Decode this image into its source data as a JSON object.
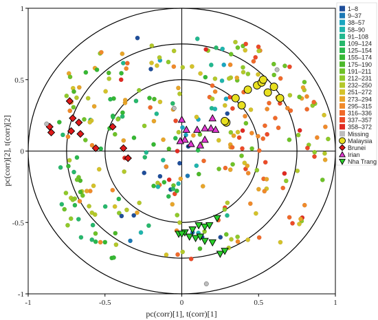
{
  "chart_data": {
    "type": "scatter",
    "title": "",
    "xlabel": "pc(corr)[1], t(corr)[1]",
    "ylabel": "pc(corr)[2], t(corr)[2]",
    "xlim": [
      -1,
      1
    ],
    "ylim": [
      -1,
      1
    ],
    "x_ticks": [
      -1,
      -0.5,
      0,
      0.5,
      1
    ],
    "y_ticks": [
      1,
      0.5,
      0,
      -0.5,
      -1
    ],
    "x_tick_labels": [
      "-1",
      "-0.5",
      "0",
      "0.5",
      "1"
    ],
    "y_tick_labels": [
      "1",
      "0.5",
      "0",
      "-0.5",
      "-1"
    ],
    "circles_radius": [
      0.5,
      0.75,
      1.0
    ],
    "legend_position": "right",
    "legend": [
      {
        "label": "1–8",
        "color": "#1f4e9a",
        "shape": "square"
      },
      {
        "label": "9–37",
        "color": "#1a78b5",
        "shape": "square"
      },
      {
        "label": "38–57",
        "color": "#1aa6c0",
        "shape": "square"
      },
      {
        "label": "58–90",
        "color": "#1fb5ad",
        "shape": "square"
      },
      {
        "label": "91–108",
        "color": "#22b88f",
        "shape": "square"
      },
      {
        "label": "109–124",
        "color": "#27b86c",
        "shape": "square"
      },
      {
        "label": "125–154",
        "color": "#2ab84e",
        "shape": "square"
      },
      {
        "label": "155–174",
        "color": "#36b833",
        "shape": "square"
      },
      {
        "label": "175–190",
        "color": "#4cb82a",
        "shape": "square"
      },
      {
        "label": "191–211",
        "color": "#6ec228",
        "shape": "square"
      },
      {
        "label": "212–231",
        "color": "#8fc92a",
        "shape": "square"
      },
      {
        "label": "232–250",
        "color": "#b3c82a",
        "shape": "square"
      },
      {
        "label": "251–272",
        "color": "#d4c22a",
        "shape": "square"
      },
      {
        "label": "273–294",
        "color": "#e8a52a",
        "shape": "square"
      },
      {
        "label": "295–315",
        "color": "#f08a2a",
        "shape": "square"
      },
      {
        "label": "316–336",
        "color": "#f06a2a",
        "shape": "square"
      },
      {
        "label": "337–357",
        "color": "#ec4a28",
        "shape": "square"
      },
      {
        "label": "358–372",
        "color": "#e02a22",
        "shape": "square"
      },
      {
        "label": "Missing",
        "color": "#bdbdbd",
        "shape": "square"
      },
      {
        "label": "Malaysia",
        "color": "#e8e020",
        "shape": "circle"
      },
      {
        "label": "Brunei",
        "color": "#e01a1a",
        "shape": "diamond"
      },
      {
        "label": "Irian",
        "color": "#e03ad0",
        "shape": "triangle-up"
      },
      {
        "label": "Nha Trang",
        "color": "#2ad02a",
        "shape": "triangle-down"
      }
    ],
    "series": [
      {
        "name": "Malaysia",
        "marker": "circle",
        "color": "#e8e020",
        "points": [
          [
            0.35,
            0.37
          ],
          [
            0.39,
            0.32
          ],
          [
            0.43,
            0.43
          ],
          [
            0.49,
            0.46
          ],
          [
            0.52,
            0.48
          ],
          [
            0.53,
            0.5
          ],
          [
            0.56,
            0.41
          ],
          [
            0.6,
            0.45
          ],
          [
            0.64,
            0.37
          ],
          [
            0.29,
            0.2
          ],
          [
            0.28,
            0.21
          ]
        ]
      },
      {
        "name": "Brunei",
        "marker": "diamond",
        "color": "#e01a1a",
        "points": [
          [
            -0.86,
            0.17
          ],
          [
            -0.85,
            0.13
          ],
          [
            -0.73,
            0.35
          ],
          [
            -0.71,
            0.23
          ],
          [
            -0.67,
            0.2
          ],
          [
            -0.72,
            0.14
          ],
          [
            -0.66,
            0.12
          ],
          [
            -0.56,
            0.02
          ],
          [
            -0.45,
            0.17
          ],
          [
            -0.38,
            0.02
          ],
          [
            -0.35,
            -0.05
          ]
        ]
      },
      {
        "name": "Irian",
        "marker": "triangle-up",
        "color": "#e03ad0",
        "points": [
          [
            0.0,
            0.22
          ],
          [
            0.03,
            0.15
          ],
          [
            0.1,
            0.15
          ],
          [
            0.15,
            0.16
          ],
          [
            0.2,
            0.23
          ],
          [
            0.19,
            0.16
          ],
          [
            0.22,
            0.15
          ],
          [
            0.02,
            0.08
          ],
          [
            0.06,
            0.05
          ],
          [
            0.12,
            0.04
          ],
          [
            0.15,
            0.08
          ],
          [
            -0.01,
            0.07
          ]
        ]
      },
      {
        "name": "Nha Trang",
        "marker": "triangle-down",
        "color": "#2ad02a",
        "points": [
          [
            0.02,
            -0.57
          ],
          [
            0.07,
            -0.55
          ],
          [
            0.11,
            -0.52
          ],
          [
            0.15,
            -0.53
          ],
          [
            0.18,
            -0.52
          ],
          [
            0.23,
            -0.47
          ],
          [
            -0.02,
            -0.58
          ],
          [
            0.0,
            -0.58
          ],
          [
            0.05,
            -0.6
          ],
          [
            0.09,
            -0.61
          ],
          [
            0.12,
            -0.6
          ],
          [
            0.15,
            -0.63
          ],
          [
            0.2,
            -0.64
          ],
          [
            0.25,
            -0.72
          ],
          [
            0.28,
            -0.7
          ]
        ]
      },
      {
        "name": "Missing",
        "marker": "circle",
        "color": "#bdbdbd",
        "points": [
          [
            0.62,
            0.57
          ],
          [
            -0.88,
            0.19
          ],
          [
            0.16,
            -0.93
          ],
          [
            -0.05,
            0.3
          ]
        ]
      }
    ]
  }
}
